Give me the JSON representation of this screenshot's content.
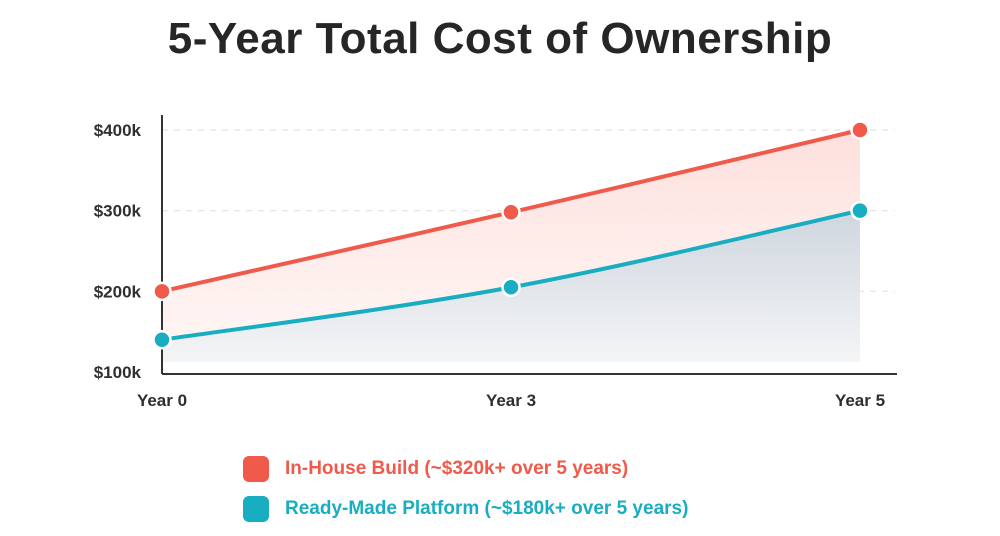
{
  "chart_data": {
    "type": "area",
    "title": "5-Year Total Cost of Ownership",
    "categories": [
      "Year 0",
      "Year 3",
      "Year 5"
    ],
    "yticks": [
      "$100k",
      "$200k",
      "$300k",
      "$400k"
    ],
    "ylim": [
      100000,
      400000
    ],
    "grid": true,
    "legend_position": "bottom",
    "series": [
      {
        "name": "In-House Build (~$320k+ over 5 years)",
        "values": [
          200000,
          298000,
          400000
        ],
        "color": "#f05a4a"
      },
      {
        "name": "Ready-Made Platform (~$180k+ over 5 years)",
        "values": [
          140000,
          205000,
          300000
        ],
        "color": "#19adc2"
      }
    ]
  }
}
